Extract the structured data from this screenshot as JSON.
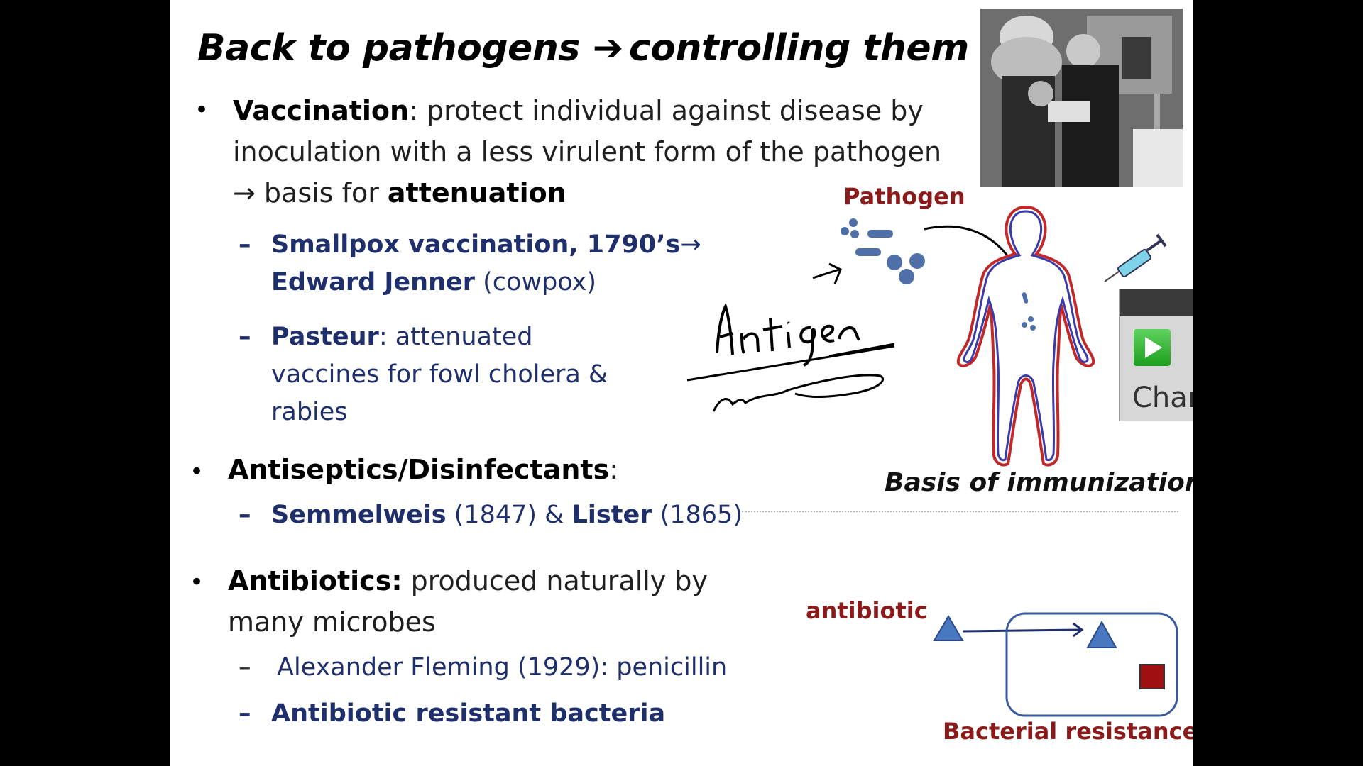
{
  "slide": {
    "title_left": "Back to pathogens",
    "title_arrow": "➔",
    "title_right": "controlling them",
    "bullets": [
      {
        "lead": "Vaccination",
        "text_1": ":  protect individual against disease by",
        "text_2": "inoculation with a less virulent form of the pathogen",
        "text_3_arrow": "→",
        "text_3_plain": " basis for ",
        "text_3_bold": "attenuation"
      },
      {
        "lead": "Antiseptics/Disinfectants",
        "suffix": ":"
      },
      {
        "lead": "Antibiotics:",
        "text_1": "  produced naturally by",
        "text_2": "many microbes"
      }
    ],
    "subitems": {
      "smallpox_line1": "Smallpox vaccination, 1790’s",
      "smallpox_arrow": "→",
      "jenner_bold": "Edward Jenner",
      "jenner_plain": " (cowpox)",
      "pasteur_bold": "Pasteur",
      "pasteur_l1": ":  attenuated",
      "pasteur_l2": "vaccines for fowl cholera &",
      "pasteur_l3": "rabies",
      "semmelweis_bold": "Semmelweis",
      "semmelweis_plain": " (1847) & ",
      "lister_bold": "Lister",
      "lister_plain": " (1865)",
      "fleming": "Alexander Fleming (1929):   penicillin",
      "resistant": "Antibiotic resistant bacteria"
    },
    "dash_char": "–",
    "bullet_char": "•",
    "diagram": {
      "pathogen_label": "Pathogen",
      "immunization_caption": "Basis of immunization",
      "antibiotic_label": "antibiotic",
      "resistance_caption": "Bacterial resistance"
    },
    "overlay_text": "Char",
    "colors": {
      "navy": "#1f2f6b",
      "dark_red": "#8b1a1a",
      "particle_blue": "#4f6fa8",
      "triangle_blue": "#4a78c0",
      "square_red": "#a01010"
    },
    "photo_icon": "historical-engraving-icon",
    "handwriting_icon": "handwritten-annotation-icon"
  }
}
